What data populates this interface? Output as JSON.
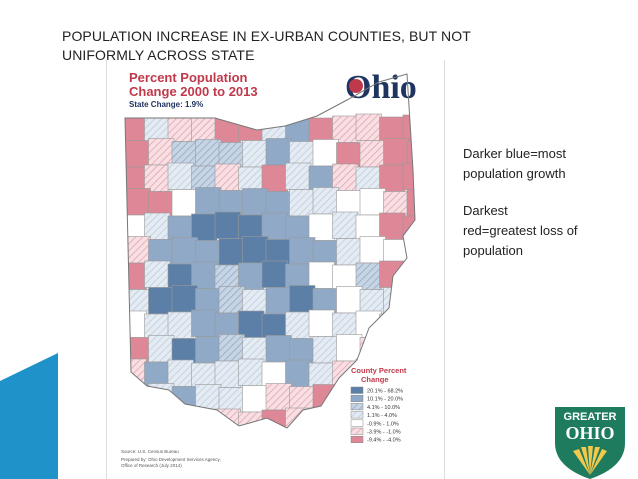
{
  "slide": {
    "title": "POPULATION INCREASE IN EX-URBAN COUNTIES, BUT NOT UNIFORMLY ACROSS STATE"
  },
  "map": {
    "title_line1": "Percent Population",
    "title_line2": "Change 2000 to 2013",
    "state_change": "State Change: 1.9%",
    "wordmark": "Ohio",
    "legend": {
      "title_line1": "County Percent",
      "title_line2": "Change",
      "items": [
        {
          "label": "20.1% - 68.2%",
          "color": "#5b7fa6",
          "hatch": false
        },
        {
          "label": "10.1% - 20.0%",
          "color": "#8fa9c7",
          "hatch": false
        },
        {
          "label": "4.1% - 10.0%",
          "color": "#b5c6da",
          "hatch": true
        },
        {
          "label": "1.1% - 4.0%",
          "color": "#d6e0ec",
          "hatch": true
        },
        {
          "label": "-0.9% - 1.0%",
          "color": "#ffffff",
          "hatch": false
        },
        {
          "label": "-3.9% - -1.0%",
          "color": "#f3c9cf",
          "hatch": true
        },
        {
          "label": "-9.4% - -4.0%",
          "color": "#dd8797",
          "hatch": false
        }
      ]
    },
    "source": "Source: U.S. Census Bureau",
    "prepared_line1": "Prepared by: Ohio Development Services Agency,",
    "prepared_line2": "Office of Research (July 2014)"
  },
  "annotations": {
    "blue_line1": "Darker blue=most",
    "blue_line2": "population growth",
    "red_line1": "Darkest",
    "red_line2": "red=greatest loss of",
    "red_line3": "population"
  },
  "logo": {
    "line1": "GREATER",
    "line2": "OHIO",
    "colors": {
      "green": "#1f7b5e",
      "gold": "#f2c94c"
    }
  },
  "colors": {
    "accent_stripe": "#1f93c9",
    "title_red": "#c0394b",
    "wordmark_navy": "#1f3560"
  }
}
